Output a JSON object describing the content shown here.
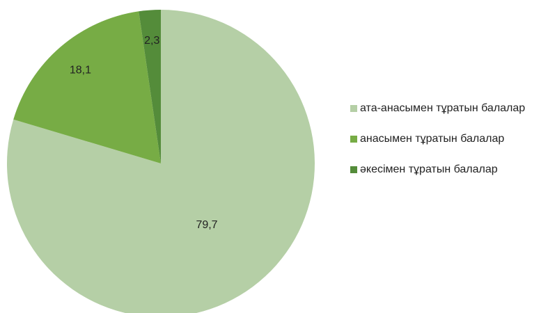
{
  "chart_data": {
    "type": "pie",
    "categories": [
      "ата-анасымен тұратын балалар",
      "анасымен тұратын балалар",
      "әкесімен тұратын балалар"
    ],
    "values": [
      79.7,
      18.1,
      2.3
    ],
    "value_labels": [
      "79,7",
      "18,1",
      "2,3"
    ],
    "colors": [
      "#b5cfa6",
      "#77ac45",
      "#548c3a"
    ],
    "legend": "right"
  }
}
